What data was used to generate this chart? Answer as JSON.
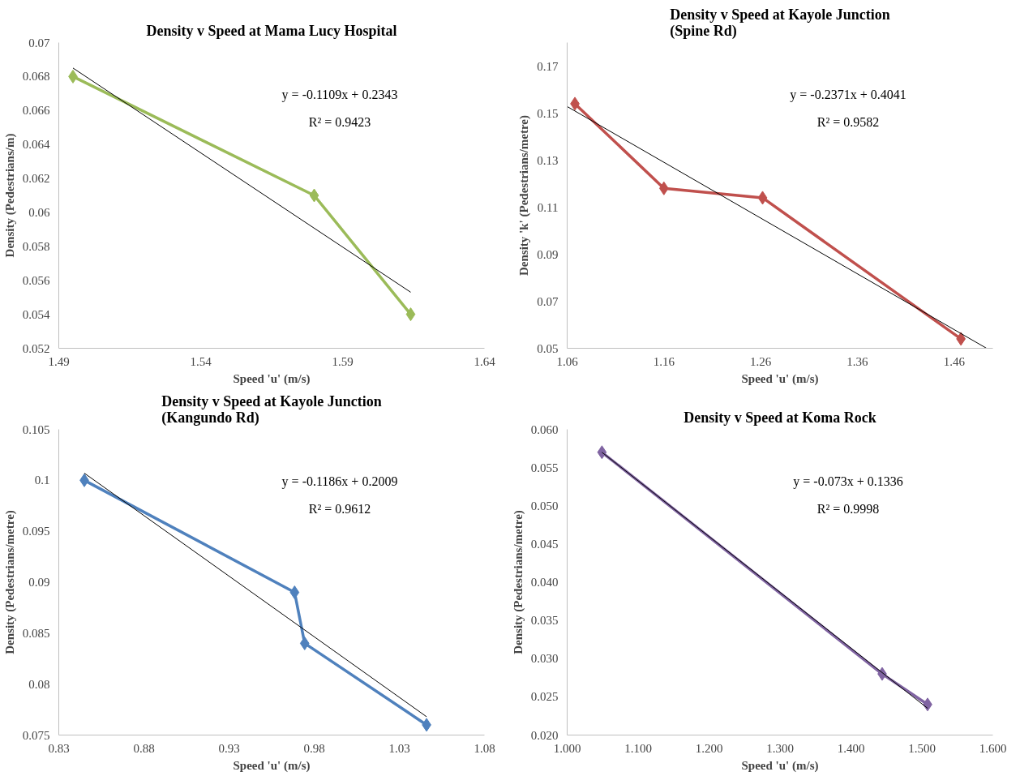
{
  "chart_data": [
    {
      "type": "line",
      "title": "Density v Speed at Mama Lucy Hospital",
      "xlabel": "Speed 'u' (m/s)",
      "ylabel": "Density (Pedestrians/m)",
      "marker": "diamond",
      "line_style": "solid",
      "xlim": [
        1.49,
        1.64
      ],
      "xticks": [
        1.49,
        1.54,
        1.59,
        1.64
      ],
      "ylim": [
        0.052,
        0.07
      ],
      "yticks": [
        0.052,
        0.054,
        0.056,
        0.058,
        0.06,
        0.062,
        0.064,
        0.066,
        0.068,
        0.07
      ],
      "annotations": [
        "y = -0.1109x + 0.2343",
        "R² = 0.9423"
      ],
      "series": [
        {
          "color": "#9bbb59",
          "x": [
            1.495,
            1.58,
            1.614
          ],
          "values": [
            0.068,
            0.061,
            0.054
          ]
        },
        {
          "type": "line",
          "marker": "none",
          "color": "#000000",
          "x": [
            1.495,
            1.614
          ],
          "values": [
            0.0685,
            0.0553
          ]
        }
      ]
    },
    {
      "type": "line",
      "title": "Density v Speed at Kayole Junction (Spine Rd)",
      "xlabel": "Speed 'u' (m/s)",
      "ylabel": "Density 'k' (Pedestrians/metre)",
      "marker": "diamond",
      "line_style": "solid",
      "xlim": [
        1.06,
        1.5
      ],
      "xticks": [
        1.06,
        1.16,
        1.26,
        1.36,
        1.46
      ],
      "ylim": [
        0.05,
        0.18
      ],
      "yticks": [
        0.05,
        0.07,
        0.09,
        0.11,
        0.13,
        0.15,
        0.17
      ],
      "annotations": [
        "y = -0.2371x + 0.4041",
        "R² = 0.9582"
      ],
      "series": [
        {
          "color": "#c0504d",
          "x": [
            1.068,
            1.16,
            1.262,
            1.467
          ],
          "values": [
            0.154,
            0.118,
            0.114,
            0.054
          ]
        },
        {
          "type": "line",
          "marker": "none",
          "color": "#000000",
          "x": [
            1.06,
            1.4935
          ],
          "values": [
            0.1528,
            0.05
          ]
        }
      ]
    },
    {
      "type": "line",
      "title": "Density v Speed at Kayole Junction (Kangundo Rd)",
      "xlabel": "Speed 'u' (m/s)",
      "ylabel": "Density (Pedestrians/metre)",
      "marker": "diamond",
      "line_style": "solid",
      "xlim": [
        0.83,
        1.08
      ],
      "xticks": [
        0.83,
        0.88,
        0.93,
        0.98,
        1.03,
        1.08
      ],
      "ylim": [
        0.075,
        0.105
      ],
      "yticks": [
        0.075,
        0.08,
        0.085,
        0.09,
        0.095,
        0.1,
        0.105
      ],
      "annotations": [
        "y = -0.1186x + 0.2009",
        "R² = 0.9612"
      ],
      "series": [
        {
          "color": "#4f81bd",
          "x": [
            0.845,
            0.9685,
            0.9744,
            1.046
          ],
          "values": [
            0.1,
            0.089,
            0.084,
            0.076
          ]
        },
        {
          "type": "line",
          "marker": "none",
          "color": "#000000",
          "x": [
            0.845,
            1.046
          ],
          "values": [
            0.1007,
            0.0768
          ]
        }
      ]
    },
    {
      "type": "line",
      "title": "Density v Speed at Koma Rock",
      "xlabel": "Speed 'u' (m/s)",
      "ylabel": "Density (Pedestrians/metre)",
      "marker": "diamond",
      "line_style": "solid",
      "xlim": [
        1.0,
        1.6
      ],
      "xticks": [
        {
          "value": 1.0,
          "label": "1.000"
        },
        {
          "value": 1.1,
          "label": "1.100"
        },
        {
          "value": 1.2,
          "label": "1.200"
        },
        {
          "value": 1.3,
          "label": "1.300"
        },
        {
          "value": 1.4,
          "label": "1.400"
        },
        {
          "value": 1.5,
          "label": "1.500"
        },
        {
          "value": 1.6,
          "label": "1.600"
        }
      ],
      "ylim": [
        0.02,
        0.06
      ],
      "yticks": [
        {
          "value": 0.02,
          "label": "0.020"
        },
        {
          "value": 0.025,
          "label": "0.025"
        },
        {
          "value": 0.03,
          "label": "0.030"
        },
        {
          "value": 0.035,
          "label": "0.035"
        },
        {
          "value": 0.04,
          "label": "0.040"
        },
        {
          "value": 0.045,
          "label": "0.045"
        },
        {
          "value": 0.05,
          "label": "0.050"
        },
        {
          "value": 0.055,
          "label": "0.055"
        },
        {
          "value": 0.06,
          "label": "0.060"
        }
      ],
      "annotations": [
        "y = -0.073x + 0.1336",
        "R² = 0.9998"
      ],
      "series": [
        {
          "color": "#8064a2",
          "x": [
            1.049,
            1.444,
            1.508
          ],
          "values": [
            0.057,
            0.028,
            0.024
          ]
        },
        {
          "type": "line",
          "marker": "none",
          "color": "#000000",
          "x": [
            1.049,
            1.508
          ],
          "values": [
            0.057,
            0.0235
          ]
        }
      ]
    }
  ]
}
